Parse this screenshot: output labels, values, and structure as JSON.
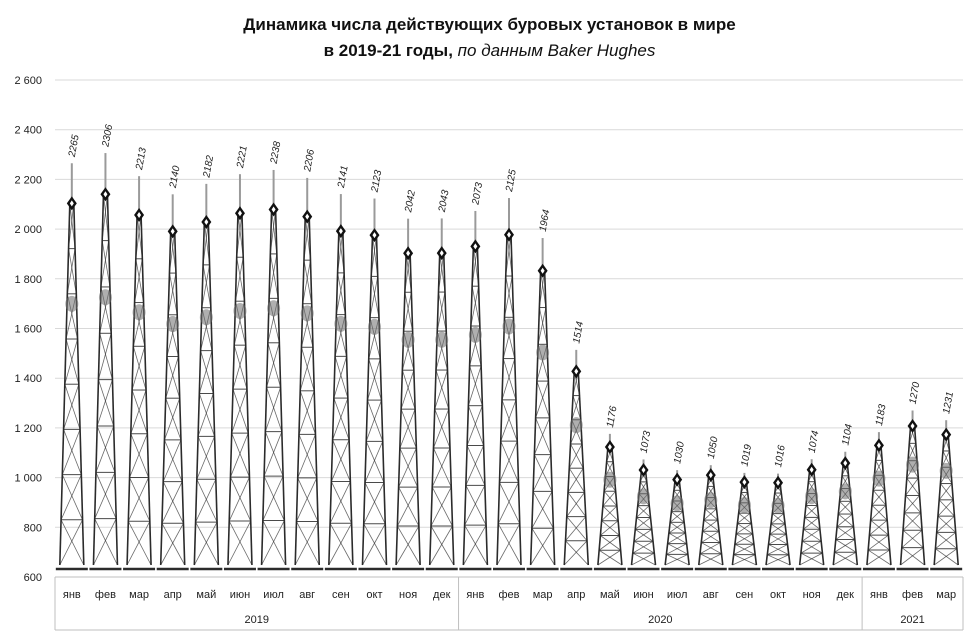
{
  "chart_data": {
    "type": "bar",
    "title": "Динамика числа действующих буровых установок в мире",
    "subtitle_bold": "в 2019-21 годы,",
    "subtitle_italic": "по данным Baker Hughes",
    "ylim": [
      600,
      2600
    ],
    "y_ticks": [
      "600",
      "800",
      "1 000",
      "1 200",
      "1 400",
      "1 600",
      "1 800",
      "2 000",
      "2 200",
      "2 400",
      "2 600"
    ],
    "grid": true,
    "categories": [
      "янв",
      "фев",
      "мар",
      "апр",
      "май",
      "июн",
      "июл",
      "авг",
      "сен",
      "окт",
      "ноя",
      "дек",
      "янв",
      "фев",
      "мар",
      "апр",
      "май",
      "июн",
      "июл",
      "авг",
      "сен",
      "окт",
      "ноя",
      "дек",
      "янв",
      "фев",
      "мар"
    ],
    "values": [
      2265,
      2306,
      2213,
      2140,
      2182,
      2221,
      2238,
      2206,
      2141,
      2123,
      2042,
      2043,
      2073,
      2125,
      1964,
      1514,
      1176,
      1073,
      1030,
      1050,
      1019,
      1016,
      1074,
      1104,
      1183,
      1270,
      1231
    ],
    "labels": [
      "2265",
      "2306",
      "2213",
      "2140",
      "2182",
      "2221",
      "2238",
      "2206",
      "2141",
      "2123",
      "2042",
      "2043",
      "2073",
      "2125",
      "1964",
      "1514",
      "1176",
      "1073",
      "1030",
      "1050",
      "1019",
      "1016",
      "1074",
      "1104",
      "1183",
      "1270",
      "1231"
    ],
    "year_groups": [
      {
        "label": "2019",
        "start": 0,
        "count": 12
      },
      {
        "label": "2020",
        "start": 12,
        "count": 12
      },
      {
        "label": "2021",
        "start": 24,
        "count": 3
      }
    ],
    "colors": {
      "mark": "#2b2b2b",
      "grid": "#d9d9d9",
      "axis": "#bfbfbf",
      "text": "#222222"
    }
  }
}
